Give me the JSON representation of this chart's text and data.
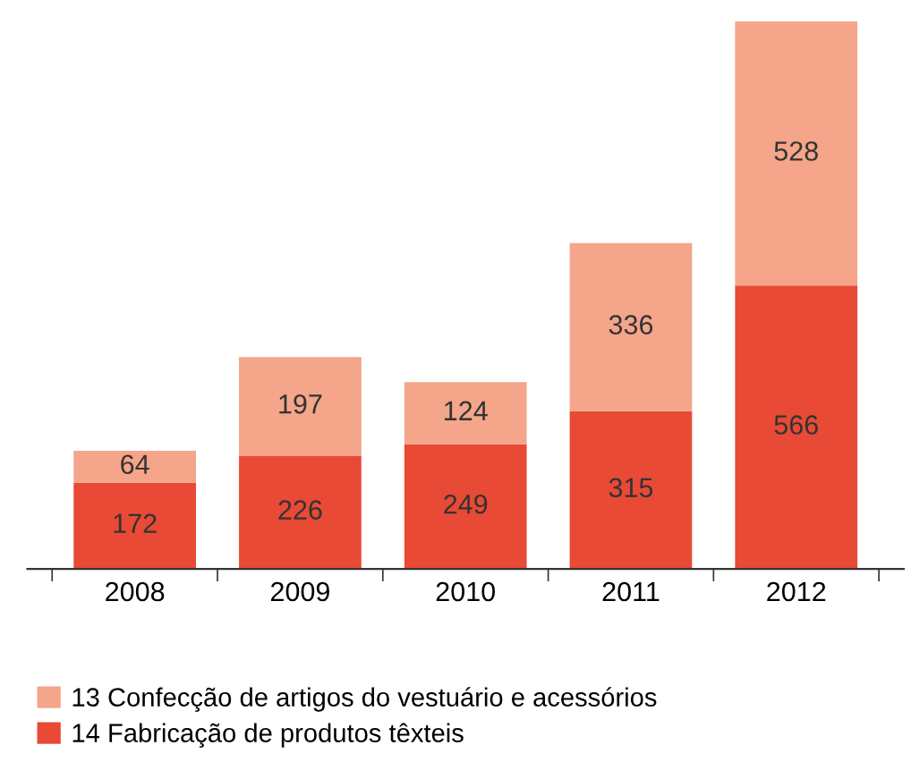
{
  "chart_data": {
    "type": "bar",
    "stacked": true,
    "data_labels": true,
    "legend": "bottom",
    "categories": [
      "2008",
      "2009",
      "2010",
      "2011",
      "2012"
    ],
    "series": [
      {
        "name": "14 Fabricação de produtos têxteis",
        "color": "#e84a35",
        "values": [
          172,
          226,
          249,
          315,
          566
        ]
      },
      {
        "name": "13 Confecção de artigos do vestuário e acessórios",
        "color": "#f4a58a",
        "values": [
          64,
          197,
          124,
          336,
          528
        ]
      }
    ]
  }
}
